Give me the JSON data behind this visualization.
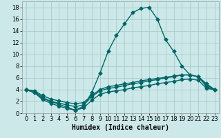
{
  "xlabel": "Humidex (Indice chaleur)",
  "bg_color": "#cce8e8",
  "grid_color": "#aacccc",
  "line_color": "#006666",
  "xlim": [
    -0.5,
    23.5
  ],
  "ylim": [
    0,
    19
  ],
  "xticks": [
    0,
    1,
    2,
    3,
    4,
    5,
    6,
    7,
    8,
    9,
    10,
    11,
    12,
    13,
    14,
    15,
    16,
    17,
    18,
    19,
    20,
    21,
    22,
    23
  ],
  "yticks": [
    0,
    2,
    4,
    6,
    8,
    10,
    12,
    14,
    16,
    18
  ],
  "line1_x": [
    0,
    1,
    2,
    3,
    4,
    5,
    6,
    7,
    8,
    9,
    10,
    11,
    12,
    13,
    14,
    15,
    16,
    17,
    18,
    19,
    20,
    21,
    22,
    23
  ],
  "line1_y": [
    4.0,
    3.5,
    2.5,
    2.0,
    1.5,
    1.0,
    0.5,
    1.2,
    3.5,
    6.8,
    10.5,
    13.2,
    15.2,
    17.1,
    17.8,
    18.0,
    16.0,
    12.5,
    10.5,
    8.0,
    6.5,
    6.2,
    5.0,
    4.0
  ],
  "line2_x": [
    0,
    1,
    2,
    3,
    4,
    5,
    6,
    7,
    8,
    9,
    10,
    11,
    12,
    13,
    14,
    15,
    16,
    17,
    18,
    19,
    20,
    21,
    22,
    23
  ],
  "line2_y": [
    4.0,
    3.7,
    2.7,
    2.0,
    1.7,
    1.4,
    1.1,
    1.4,
    2.8,
    3.8,
    4.2,
    4.4,
    4.7,
    5.0,
    5.2,
    5.5,
    5.7,
    6.0,
    6.2,
    6.5,
    6.5,
    6.2,
    4.5,
    4.0
  ],
  "line3_x": [
    0,
    1,
    2,
    3,
    4,
    5,
    6,
    7,
    8,
    9,
    10,
    11,
    12,
    13,
    14,
    15,
    16,
    17,
    18,
    19,
    20,
    21,
    22,
    23
  ],
  "line3_y": [
    4.0,
    3.8,
    3.0,
    2.4,
    2.1,
    1.8,
    1.6,
    1.8,
    3.0,
    4.0,
    4.5,
    4.7,
    5.0,
    5.2,
    5.5,
    5.7,
    5.9,
    6.1,
    6.3,
    6.5,
    6.5,
    6.2,
    4.8,
    4.0
  ],
  "line4_x": [
    0,
    1,
    2,
    3,
    4,
    5,
    6,
    7,
    8,
    9,
    10,
    11,
    12,
    13,
    14,
    15,
    16,
    17,
    18,
    19,
    20,
    21,
    22,
    23
  ],
  "line4_y": [
    4.0,
    3.5,
    2.3,
    1.7,
    1.2,
    0.8,
    0.5,
    0.9,
    2.2,
    3.2,
    3.6,
    3.8,
    4.0,
    4.3,
    4.5,
    4.7,
    5.0,
    5.2,
    5.4,
    5.7,
    5.8,
    5.6,
    4.2,
    4.0
  ],
  "marker": "D",
  "markersize": 2.5,
  "linewidth": 1.0,
  "xlabel_fontsize": 7,
  "tick_fontsize": 6
}
